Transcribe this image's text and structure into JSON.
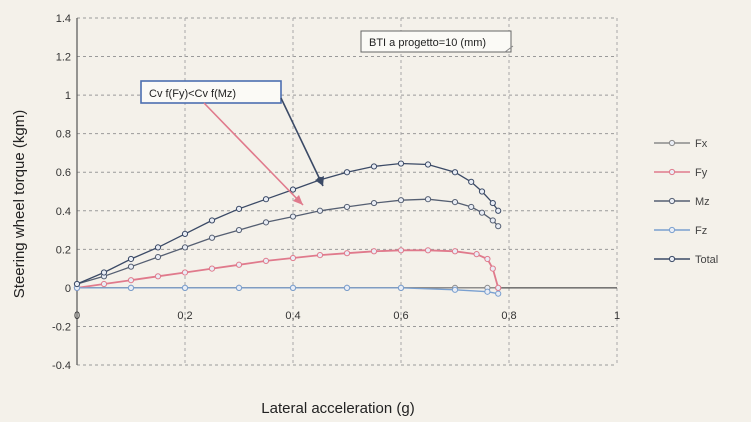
{
  "chart_data": {
    "type": "line",
    "xlabel": "Lateral acceleration (g)",
    "ylabel": "Steering wheel torque (kgm)",
    "xlim": [
      0,
      1
    ],
    "ylim": [
      -0.4,
      1.4
    ],
    "x_ticks": [
      0,
      0.2,
      0.4,
      0.6,
      0.8,
      1
    ],
    "x_tick_labels": [
      "0",
      "0,2",
      "0,4",
      "0,6",
      "0,8",
      "1"
    ],
    "y_ticks": [
      -0.4,
      -0.2,
      0,
      0.2,
      0.4,
      0.6,
      0.8,
      1,
      1.2,
      1.4
    ],
    "y_tick_labels": [
      "-0.4",
      "-0.2",
      "0",
      "0.2",
      "0.4",
      "0.6",
      "0.8",
      "1",
      "1.2",
      "1.4"
    ],
    "grid": true,
    "legend_position": "right",
    "series": [
      {
        "name": "Fx",
        "color": "#8a8a8a",
        "x": [
          0,
          0.1,
          0.2,
          0.3,
          0.4,
          0.5,
          0.6,
          0.7,
          0.76,
          0.78
        ],
        "y": [
          0,
          0,
          0,
          0,
          0,
          0,
          0,
          0,
          0,
          0
        ]
      },
      {
        "name": "Fy",
        "color": "#e07a8c",
        "x": [
          0,
          0.05,
          0.1,
          0.15,
          0.2,
          0.25,
          0.3,
          0.35,
          0.4,
          0.45,
          0.5,
          0.55,
          0.6,
          0.65,
          0.7,
          0.74,
          0.76,
          0.77,
          0.78
        ],
        "y": [
          0,
          0.02,
          0.04,
          0.06,
          0.08,
          0.1,
          0.12,
          0.14,
          0.155,
          0.17,
          0.18,
          0.19,
          0.195,
          0.195,
          0.19,
          0.175,
          0.15,
          0.1,
          0.0
        ]
      },
      {
        "name": "Mz",
        "color": "#555f72",
        "x": [
          0,
          0.05,
          0.1,
          0.15,
          0.2,
          0.25,
          0.3,
          0.35,
          0.4,
          0.45,
          0.5,
          0.55,
          0.6,
          0.65,
          0.7,
          0.73,
          0.75,
          0.77,
          0.78
        ],
        "y": [
          0.02,
          0.06,
          0.11,
          0.16,
          0.21,
          0.26,
          0.3,
          0.34,
          0.37,
          0.4,
          0.42,
          0.44,
          0.455,
          0.46,
          0.445,
          0.42,
          0.39,
          0.35,
          0.32
        ]
      },
      {
        "name": "Fz",
        "color": "#7aa0d0",
        "x": [
          0,
          0.1,
          0.2,
          0.3,
          0.4,
          0.5,
          0.6,
          0.7,
          0.76,
          0.78
        ],
        "y": [
          0,
          0,
          0,
          0,
          0,
          0,
          0,
          -0.01,
          -0.02,
          -0.03
        ]
      },
      {
        "name": "Total",
        "color": "#3b4a66",
        "x": [
          0,
          0.05,
          0.1,
          0.15,
          0.2,
          0.25,
          0.3,
          0.35,
          0.4,
          0.45,
          0.5,
          0.55,
          0.6,
          0.65,
          0.7,
          0.73,
          0.75,
          0.77,
          0.78
        ],
        "y": [
          0.02,
          0.08,
          0.15,
          0.21,
          0.28,
          0.35,
          0.41,
          0.46,
          0.51,
          0.56,
          0.6,
          0.63,
          0.645,
          0.64,
          0.6,
          0.55,
          0.5,
          0.44,
          0.4
        ]
      }
    ],
    "annotations": [
      {
        "text": "BTI a progetto=10 (mm)"
      },
      {
        "text": "Cv f(Fy)<Cv f(Mz)"
      }
    ]
  }
}
